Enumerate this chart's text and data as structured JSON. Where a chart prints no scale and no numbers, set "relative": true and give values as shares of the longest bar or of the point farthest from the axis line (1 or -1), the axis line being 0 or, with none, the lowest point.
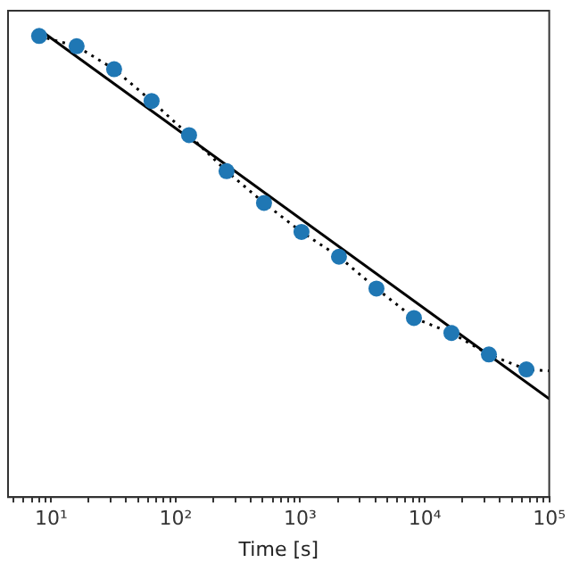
{
  "chart_data": {
    "type": "scatter",
    "xlabel": "Time [s]",
    "relative": true,
    "log": "x",
    "grid": false,
    "xlim": [
      4.5,
      100000
    ],
    "xticks": [
      {
        "value": 5,
        "label": null
      },
      {
        "value": 6,
        "label": null
      },
      {
        "value": 7,
        "label": null
      },
      {
        "value": 8,
        "label": null
      },
      {
        "value": 9,
        "label": null
      },
      {
        "value": 10,
        "label": "10¹"
      },
      {
        "value": 20,
        "label": null
      },
      {
        "value": 30,
        "label": null
      },
      {
        "value": 40,
        "label": null
      },
      {
        "value": 50,
        "label": null
      },
      {
        "value": 60,
        "label": null
      },
      {
        "value": 70,
        "label": null
      },
      {
        "value": 80,
        "label": null
      },
      {
        "value": 90,
        "label": null
      },
      {
        "value": 100,
        "label": "10²"
      },
      {
        "value": 200,
        "label": null
      },
      {
        "value": 300,
        "label": null
      },
      {
        "value": 400,
        "label": null
      },
      {
        "value": 500,
        "label": null
      },
      {
        "value": 600,
        "label": null
      },
      {
        "value": 700,
        "label": null
      },
      {
        "value": 800,
        "label": null
      },
      {
        "value": 900,
        "label": null
      },
      {
        "value": 1000,
        "label": "10³"
      },
      {
        "value": 2000,
        "label": null
      },
      {
        "value": 3000,
        "label": null
      },
      {
        "value": 4000,
        "label": null
      },
      {
        "value": 5000,
        "label": null
      },
      {
        "value": 6000,
        "label": null
      },
      {
        "value": 7000,
        "label": null
      },
      {
        "value": 8000,
        "label": null
      },
      {
        "value": 9000,
        "label": null
      },
      {
        "value": 10000,
        "label": "10⁴"
      },
      {
        "value": 20000,
        "label": null
      },
      {
        "value": 30000,
        "label": null
      },
      {
        "value": 40000,
        "label": null
      },
      {
        "value": 50000,
        "label": null
      },
      {
        "value": 60000,
        "label": null
      },
      {
        "value": 70000,
        "label": null
      },
      {
        "value": 80000,
        "label": null
      },
      {
        "value": 90000,
        "label": null
      },
      {
        "value": 100000,
        "label": "10⁵"
      }
    ],
    "series": [
      {
        "type": "line",
        "color": "#000000",
        "line_style": "solid",
        "marker": "none",
        "x": [
          8,
          100000
        ],
        "values": [
          1,
          0.21
        ]
      },
      {
        "type": "line",
        "color": "#000000",
        "line_style": "dotted",
        "marker": "none",
        "x": [
          8,
          16,
          32,
          64,
          128,
          256,
          512,
          1024,
          2048,
          4096,
          8192,
          16384,
          32768,
          65536,
          100000
        ],
        "values": [
          0.986,
          0.964,
          0.915,
          0.847,
          0.774,
          0.697,
          0.629,
          0.567,
          0.514,
          0.446,
          0.383,
          0.351,
          0.305,
          0.273,
          0.27
        ]
      },
      {
        "color": "#1f77b4",
        "marker": "circle",
        "x": [
          8,
          16,
          32,
          64,
          128,
          256,
          512,
          1024,
          2048,
          4096,
          8192,
          16384,
          32768,
          65536
        ],
        "values": [
          0.986,
          0.964,
          0.915,
          0.847,
          0.774,
          0.697,
          0.629,
          0.567,
          0.514,
          0.446,
          0.383,
          0.351,
          0.305,
          0.273
        ]
      }
    ]
  }
}
